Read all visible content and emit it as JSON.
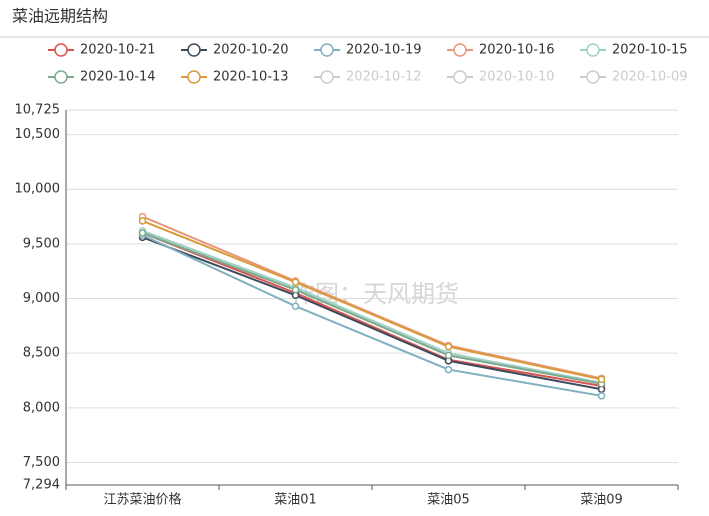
{
  "chart_data": {
    "type": "line",
    "title": "菜油远期结构",
    "annotation": "作图：天风期货",
    "categories": [
      "江苏菜油价格",
      "菜油01",
      "菜油05",
      "菜油09"
    ],
    "series": [
      {
        "name": "2020-10-21",
        "color": "#d9534f",
        "values": [
          9600,
          9050,
          8440,
          8200
        ]
      },
      {
        "name": "2020-10-20",
        "color": "#3d4a5c",
        "values": [
          9560,
          9030,
          8430,
          8170
        ]
      },
      {
        "name": "2020-10-19",
        "color": "#7fb0c0",
        "values": [
          9580,
          8930,
          8350,
          8110
        ]
      },
      {
        "name": "2020-10-16",
        "color": "#e8967a",
        "values": [
          9750,
          9160,
          8570,
          8270
        ]
      },
      {
        "name": "2020-10-15",
        "color": "#9fd1c5",
        "values": [
          9620,
          9100,
          8500,
          8230
        ]
      },
      {
        "name": "2020-10-14",
        "color": "#7daa8e",
        "values": [
          9600,
          9080,
          8480,
          8220
        ]
      },
      {
        "name": "2020-10-13",
        "color": "#d99a3a",
        "values": [
          9710,
          9150,
          8560,
          8260
        ]
      },
      {
        "name": "2020-10-12",
        "color": "#cccccc",
        "hidden": true,
        "values": [
          null,
          null,
          null,
          null
        ]
      },
      {
        "name": "2020-10-10",
        "color": "#cccccc",
        "hidden": true,
        "values": [
          null,
          null,
          null,
          null
        ]
      },
      {
        "name": "2020-10-09",
        "color": "#cccccc",
        "hidden": true,
        "values": [
          null,
          null,
          null,
          null
        ]
      }
    ],
    "ylim": [
      7294,
      10725
    ],
    "yticks": [
      {
        "value": 7294,
        "label": "7,294"
      },
      {
        "value": 7500,
        "label": "7,500"
      },
      {
        "value": 8000,
        "label": "8,000"
      },
      {
        "value": 8500,
        "label": "8,500"
      },
      {
        "value": 9000,
        "label": "9,000"
      },
      {
        "value": 9500,
        "label": "9,500"
      },
      {
        "value": 10000,
        "label": "10,000"
      },
      {
        "value": 10500,
        "label": "10,500"
      },
      {
        "value": 10725,
        "label": "10,725"
      }
    ],
    "grid": true
  }
}
